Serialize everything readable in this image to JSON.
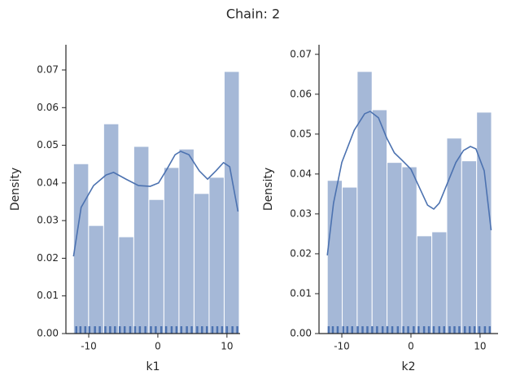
{
  "title": "Chain: 2",
  "chart_data": [
    {
      "type": "histogram",
      "xlabel": "k1",
      "ylabel": "Density",
      "color": "#a5b8d7",
      "line_color": "#4c72b0",
      "bins": [
        -12.2,
        -10.02,
        -7.84,
        -5.66,
        -3.48,
        -1.3,
        0.88,
        3.06,
        5.24,
        7.42,
        9.6,
        11.78
      ],
      "values": [
        0.0451,
        0.0287,
        0.0557,
        0.0257,
        0.0497,
        0.0356,
        0.0441,
        0.049,
        0.0372,
        0.0415,
        0.0696
      ],
      "kde": {
        "x": [
          -12.2,
          -11.1,
          -9.3,
          -7.5,
          -6.4,
          -4.6,
          -2.8,
          -1.1,
          0.1,
          1.3,
          2.5,
          3.3,
          4.5,
          6.0,
          7.2,
          8.4,
          9.5,
          10.4,
          11.6
        ],
        "y": [
          0.0205,
          0.0335,
          0.0393,
          0.0421,
          0.0428,
          0.041,
          0.0393,
          0.0391,
          0.04,
          0.0436,
          0.0475,
          0.0484,
          0.0475,
          0.0432,
          0.041,
          0.0432,
          0.0454,
          0.0443,
          0.0324
        ]
      },
      "rug": [
        -11.8,
        -11.2,
        -10.5,
        -9.9,
        -9.1,
        -8.4,
        -7.6,
        -6.9,
        -6.2,
        -5.5,
        -4.8,
        -4.0,
        -3.3,
        -2.6,
        -1.8,
        -1.0,
        -0.3,
        0.5,
        1.2,
        2.0,
        2.7,
        3.4,
        4.2,
        4.9,
        5.7,
        6.4,
        7.1,
        7.9,
        8.6,
        9.3,
        10.0,
        10.8,
        11.5
      ],
      "xlim": [
        -13.3,
        11.9
      ],
      "xticks": [
        -10,
        0,
        10
      ],
      "ylim": [
        0,
        0.0767
      ],
      "yticks": [
        {
          "value": 0,
          "label": "0.00"
        },
        {
          "value": 0.01,
          "label": "0.01"
        },
        {
          "value": 0.02,
          "label": "0.02"
        },
        {
          "value": 0.03,
          "label": "0.03"
        },
        {
          "value": 0.04,
          "label": "0.04"
        },
        {
          "value": 0.05,
          "label": "0.05"
        },
        {
          "value": 0.06,
          "label": "0.06"
        },
        {
          "value": 0.07,
          "label": "0.07"
        }
      ]
    },
    {
      "type": "histogram",
      "xlabel": "k2",
      "ylabel": "Density",
      "color": "#a5b8d7",
      "line_color": "#4c72b0",
      "bins": [
        -12.1,
        -9.94,
        -7.78,
        -5.62,
        -3.46,
        -1.3,
        0.86,
        3.02,
        5.18,
        7.34,
        9.5,
        11.66
      ],
      "values": [
        0.0384,
        0.0367,
        0.0657,
        0.0561,
        0.0429,
        0.0418,
        0.0245,
        0.0255,
        0.049,
        0.0433,
        0.0555
      ],
      "kde": {
        "x": [
          -12.1,
          -11.2,
          -10.0,
          -8.2,
          -6.7,
          -5.9,
          -4.7,
          -3.5,
          -2.4,
          -1.2,
          0.0,
          1.2,
          2.4,
          3.3,
          4.1,
          5.3,
          6.5,
          7.6,
          8.6,
          9.4,
          10.6,
          11.6
        ],
        "y": [
          0.0196,
          0.0327,
          0.0429,
          0.051,
          0.0551,
          0.0557,
          0.0541,
          0.049,
          0.0453,
          0.0433,
          0.0412,
          0.0367,
          0.0322,
          0.0312,
          0.0327,
          0.0378,
          0.0429,
          0.0459,
          0.0469,
          0.0463,
          0.0408,
          0.0259
        ]
      },
      "rug": [
        -11.9,
        -11.3,
        -10.6,
        -9.8,
        -9.2,
        -8.5,
        -7.7,
        -7.0,
        -6.3,
        -5.6,
        -4.9,
        -4.1,
        -3.4,
        -2.7,
        -1.9,
        -1.1,
        -0.4,
        0.4,
        1.1,
        1.9,
        2.6,
        3.3,
        4.1,
        4.8,
        5.6,
        6.3,
        7.0,
        7.8,
        8.5,
        9.2,
        9.9,
        10.7,
        11.4
      ],
      "xlim": [
        -13.3,
        12.6
      ],
      "xticks": [
        -10,
        0,
        10
      ],
      "ylim": [
        0,
        0.0724
      ],
      "yticks": [
        {
          "value": 0,
          "label": "0.00"
        },
        {
          "value": 0.01,
          "label": "0.01"
        },
        {
          "value": 0.02,
          "label": "0.02"
        },
        {
          "value": 0.03,
          "label": "0.03"
        },
        {
          "value": 0.04,
          "label": "0.04"
        },
        {
          "value": 0.05,
          "label": "0.05"
        },
        {
          "value": 0.06,
          "label": "0.06"
        },
        {
          "value": 0.07,
          "label": "0.07"
        }
      ]
    }
  ]
}
